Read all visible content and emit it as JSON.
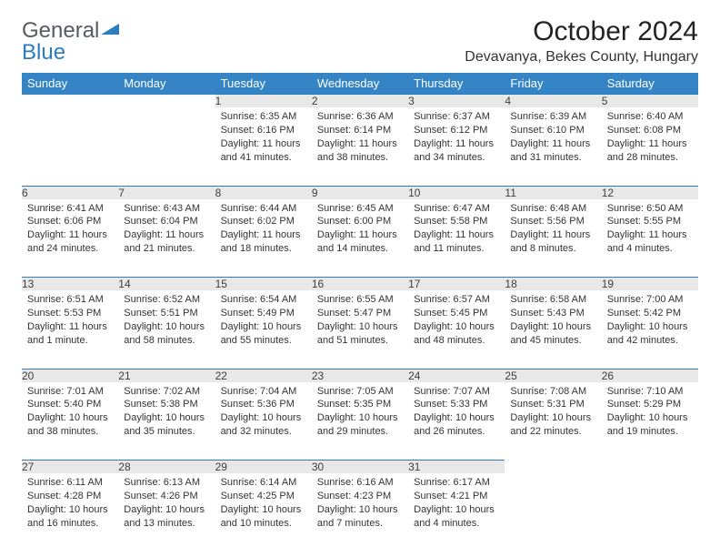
{
  "logo": {
    "text1": "General",
    "text2": "Blue"
  },
  "title": "October 2024",
  "location": "Devavanya, Bekes County, Hungary",
  "colors": {
    "header_bg": "#3585c6",
    "header_fg": "#ffffff",
    "daynum_bg": "#e8e8e8",
    "rule": "#2b7cc0",
    "logo_gray": "#555b61",
    "logo_blue": "#2b7cc0"
  },
  "weekdays": [
    "Sunday",
    "Monday",
    "Tuesday",
    "Wednesday",
    "Thursday",
    "Friday",
    "Saturday"
  ],
  "weeks": [
    [
      {
        "n": "",
        "sr": "",
        "ss": "",
        "dl": ""
      },
      {
        "n": "",
        "sr": "",
        "ss": "",
        "dl": ""
      },
      {
        "n": "1",
        "sr": "Sunrise: 6:35 AM",
        "ss": "Sunset: 6:16 PM",
        "dl": "Daylight: 11 hours and 41 minutes."
      },
      {
        "n": "2",
        "sr": "Sunrise: 6:36 AM",
        "ss": "Sunset: 6:14 PM",
        "dl": "Daylight: 11 hours and 38 minutes."
      },
      {
        "n": "3",
        "sr": "Sunrise: 6:37 AM",
        "ss": "Sunset: 6:12 PM",
        "dl": "Daylight: 11 hours and 34 minutes."
      },
      {
        "n": "4",
        "sr": "Sunrise: 6:39 AM",
        "ss": "Sunset: 6:10 PM",
        "dl": "Daylight: 11 hours and 31 minutes."
      },
      {
        "n": "5",
        "sr": "Sunrise: 6:40 AM",
        "ss": "Sunset: 6:08 PM",
        "dl": "Daylight: 11 hours and 28 minutes."
      }
    ],
    [
      {
        "n": "6",
        "sr": "Sunrise: 6:41 AM",
        "ss": "Sunset: 6:06 PM",
        "dl": "Daylight: 11 hours and 24 minutes."
      },
      {
        "n": "7",
        "sr": "Sunrise: 6:43 AM",
        "ss": "Sunset: 6:04 PM",
        "dl": "Daylight: 11 hours and 21 minutes."
      },
      {
        "n": "8",
        "sr": "Sunrise: 6:44 AM",
        "ss": "Sunset: 6:02 PM",
        "dl": "Daylight: 11 hours and 18 minutes."
      },
      {
        "n": "9",
        "sr": "Sunrise: 6:45 AM",
        "ss": "Sunset: 6:00 PM",
        "dl": "Daylight: 11 hours and 14 minutes."
      },
      {
        "n": "10",
        "sr": "Sunrise: 6:47 AM",
        "ss": "Sunset: 5:58 PM",
        "dl": "Daylight: 11 hours and 11 minutes."
      },
      {
        "n": "11",
        "sr": "Sunrise: 6:48 AM",
        "ss": "Sunset: 5:56 PM",
        "dl": "Daylight: 11 hours and 8 minutes."
      },
      {
        "n": "12",
        "sr": "Sunrise: 6:50 AM",
        "ss": "Sunset: 5:55 PM",
        "dl": "Daylight: 11 hours and 4 minutes."
      }
    ],
    [
      {
        "n": "13",
        "sr": "Sunrise: 6:51 AM",
        "ss": "Sunset: 5:53 PM",
        "dl": "Daylight: 11 hours and 1 minute."
      },
      {
        "n": "14",
        "sr": "Sunrise: 6:52 AM",
        "ss": "Sunset: 5:51 PM",
        "dl": "Daylight: 10 hours and 58 minutes."
      },
      {
        "n": "15",
        "sr": "Sunrise: 6:54 AM",
        "ss": "Sunset: 5:49 PM",
        "dl": "Daylight: 10 hours and 55 minutes."
      },
      {
        "n": "16",
        "sr": "Sunrise: 6:55 AM",
        "ss": "Sunset: 5:47 PM",
        "dl": "Daylight: 10 hours and 51 minutes."
      },
      {
        "n": "17",
        "sr": "Sunrise: 6:57 AM",
        "ss": "Sunset: 5:45 PM",
        "dl": "Daylight: 10 hours and 48 minutes."
      },
      {
        "n": "18",
        "sr": "Sunrise: 6:58 AM",
        "ss": "Sunset: 5:43 PM",
        "dl": "Daylight: 10 hours and 45 minutes."
      },
      {
        "n": "19",
        "sr": "Sunrise: 7:00 AM",
        "ss": "Sunset: 5:42 PM",
        "dl": "Daylight: 10 hours and 42 minutes."
      }
    ],
    [
      {
        "n": "20",
        "sr": "Sunrise: 7:01 AM",
        "ss": "Sunset: 5:40 PM",
        "dl": "Daylight: 10 hours and 38 minutes."
      },
      {
        "n": "21",
        "sr": "Sunrise: 7:02 AM",
        "ss": "Sunset: 5:38 PM",
        "dl": "Daylight: 10 hours and 35 minutes."
      },
      {
        "n": "22",
        "sr": "Sunrise: 7:04 AM",
        "ss": "Sunset: 5:36 PM",
        "dl": "Daylight: 10 hours and 32 minutes."
      },
      {
        "n": "23",
        "sr": "Sunrise: 7:05 AM",
        "ss": "Sunset: 5:35 PM",
        "dl": "Daylight: 10 hours and 29 minutes."
      },
      {
        "n": "24",
        "sr": "Sunrise: 7:07 AM",
        "ss": "Sunset: 5:33 PM",
        "dl": "Daylight: 10 hours and 26 minutes."
      },
      {
        "n": "25",
        "sr": "Sunrise: 7:08 AM",
        "ss": "Sunset: 5:31 PM",
        "dl": "Daylight: 10 hours and 22 minutes."
      },
      {
        "n": "26",
        "sr": "Sunrise: 7:10 AM",
        "ss": "Sunset: 5:29 PM",
        "dl": "Daylight: 10 hours and 19 minutes."
      }
    ],
    [
      {
        "n": "27",
        "sr": "Sunrise: 6:11 AM",
        "ss": "Sunset: 4:28 PM",
        "dl": "Daylight: 10 hours and 16 minutes."
      },
      {
        "n": "28",
        "sr": "Sunrise: 6:13 AM",
        "ss": "Sunset: 4:26 PM",
        "dl": "Daylight: 10 hours and 13 minutes."
      },
      {
        "n": "29",
        "sr": "Sunrise: 6:14 AM",
        "ss": "Sunset: 4:25 PM",
        "dl": "Daylight: 10 hours and 10 minutes."
      },
      {
        "n": "30",
        "sr": "Sunrise: 6:16 AM",
        "ss": "Sunset: 4:23 PM",
        "dl": "Daylight: 10 hours and 7 minutes."
      },
      {
        "n": "31",
        "sr": "Sunrise: 6:17 AM",
        "ss": "Sunset: 4:21 PM",
        "dl": "Daylight: 10 hours and 4 minutes."
      },
      {
        "n": "",
        "sr": "",
        "ss": "",
        "dl": ""
      },
      {
        "n": "",
        "sr": "",
        "ss": "",
        "dl": ""
      }
    ]
  ]
}
